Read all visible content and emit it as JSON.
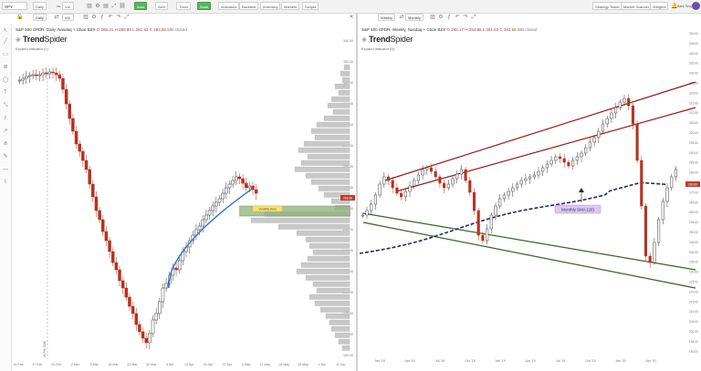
{
  "topbar": {
    "ticker": "SPY",
    "left_buttons": [
      {
        "label": "Daily"
      },
      {
        "label": "vs."
      },
      {
        "label": "Vol."
      }
    ],
    "center_buttons": [
      {
        "label": "Auto",
        "green": true
      },
      {
        "label": "Alert"
      },
      {
        "label": "Trend"
      },
      {
        "label": "Scan",
        "green": true
      },
      {
        "label": "Indicators"
      },
      {
        "label": "Backtest"
      },
      {
        "label": "Inventory"
      },
      {
        "label": "Markets"
      },
      {
        "label": "Scripts"
      }
    ],
    "right_buttons": [
      {
        "label": "Strategy Tester"
      },
      {
        "label": "Market Scanner"
      },
      {
        "label": "Widgets"
      }
    ],
    "user": "Alex Wujastyk"
  },
  "left_chart": {
    "interval": "Daily",
    "title": "S&P 500 SPDR, Daily, Nasdaq + Cboe BZX",
    "ohlc": {
      "o": "O 285.31",
      "h": "H 286.88",
      "l": "L 281.52",
      "c": "C 283.66",
      "chg": "Mkt closed"
    },
    "logo_bold": "Trend",
    "logo_thin": "Spider",
    "expand": "Expand Indicator (1)",
    "price_tag": "283.66",
    "level_label": "Volatility Area",
    "x_ticks": [
      "10 Feb",
      "17 Feb",
      "24 Feb",
      "2 Mar",
      "9 Mar",
      "16 Mar",
      "23 Mar",
      "30 Mar",
      "6 Apr",
      "13 Apr",
      "20 Apr",
      "27 Apr",
      "4 May",
      "11 May",
      "18 May",
      "25 May",
      "1 Jun",
      "8 Jun"
    ],
    "y_ticks": [
      "340.00",
      "330.00",
      "320.00",
      "310.00",
      "300.00",
      "290.00",
      "280.00",
      "270.00",
      "260.00",
      "250.00",
      "240.00",
      "230.00",
      "220.00",
      "210.00",
      "200.00",
      "190.00"
    ],
    "date_marker": "24 Feb 2020"
  },
  "right_chart": {
    "interval": "Weekly",
    "compare": "Monthly",
    "title": "S&P 500 SPDR, Weekly, Nasdaq + Cboe BZX",
    "ohlc": {
      "o": "O 285.17",
      "h": "H 294.88",
      "l": "L 281.52",
      "c": "C 283.66",
      "chg": "Mkt closed"
    },
    "logo_bold": "Trend",
    "logo_thin": "Spider",
    "expand": "Expand Indicator (5)",
    "annotation": "Monthly SMA (20)",
    "price_tag": "283.66",
    "x_ticks": [
      "Jan '18",
      "Apr '18",
      "Jul '18",
      "Oct '18",
      "Jan '19",
      "Apr '19",
      "Jul '19",
      "Oct '19",
      "Jan '20",
      "Apr '20"
    ],
    "y_ticks": [
      "350.00",
      "345.00",
      "340.00",
      "335.00",
      "330.00",
      "325.00",
      "320.00",
      "315.00",
      "310.00",
      "305.00",
      "300.00",
      "295.00",
      "290.00",
      "285.00",
      "280.00",
      "275.00",
      "270.00",
      "265.00",
      "260.00",
      "255.00",
      "250.00",
      "245.00",
      "240.00",
      "235.00",
      "230.00",
      "225.00",
      "220.00",
      "215.00",
      "210.00",
      "205.00",
      "200.00",
      "195.00",
      "190.00"
    ]
  },
  "colors": {
    "up": "#3a3a3a",
    "down": "#b5321f",
    "sma_blue": "#2e74d6",
    "sma_navy": "#24246e",
    "channel_red": "#9b1b10",
    "channel_green": "#2d6a1f",
    "volume_bar": "#c8c8c8",
    "level_band": "#8db07a"
  }
}
